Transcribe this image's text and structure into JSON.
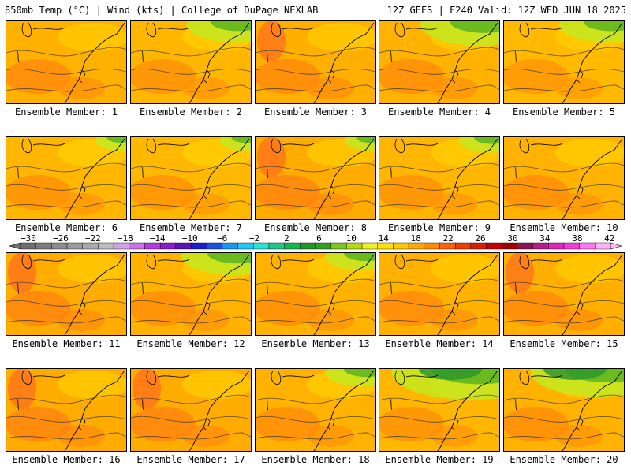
{
  "header": {
    "left": "850mb Temp (°C) | Wind (kts) | College of DuPage NEXLAB",
    "right": "12Z GEFS | F240 Valid: 12Z WED JUN 18 2025"
  },
  "member_label_prefix": "Ensemble Member: ",
  "members": [
    {
      "number": 1,
      "warmth": 0.5,
      "green": 0.0
    },
    {
      "number": 2,
      "warmth": 0.4,
      "green": 0.45
    },
    {
      "number": 3,
      "warmth": 0.55,
      "green": 0.0
    },
    {
      "number": 4,
      "warmth": 0.45,
      "green": 0.6
    },
    {
      "number": 5,
      "warmth": 0.3,
      "green": 0.45
    },
    {
      "number": 6,
      "warmth": 0.4,
      "green": 0.1
    },
    {
      "number": 7,
      "warmth": 0.35,
      "green": 0.1
    },
    {
      "number": 8,
      "warmth": 0.6,
      "green": 0.1
    },
    {
      "number": 9,
      "warmth": 0.4,
      "green": 0.2
    },
    {
      "number": 10,
      "warmth": 0.45,
      "green": 0.0
    },
    {
      "number": 11,
      "warmth": 0.6,
      "green": 0.0
    },
    {
      "number": 12,
      "warmth": 0.45,
      "green": 0.5
    },
    {
      "number": 13,
      "warmth": 0.45,
      "green": 0.3
    },
    {
      "number": 14,
      "warmth": 0.5,
      "green": 0.0
    },
    {
      "number": 15,
      "warmth": 0.55,
      "green": 0.0
    },
    {
      "number": 16,
      "warmth": 0.6,
      "green": 0.0
    },
    {
      "number": 17,
      "warmth": 0.6,
      "green": 0.0
    },
    {
      "number": 18,
      "warmth": 0.45,
      "green": 0.3
    },
    {
      "number": 19,
      "warmth": 0.4,
      "green": 0.9
    },
    {
      "number": 20,
      "warmth": 0.45,
      "green": 0.75
    }
  ],
  "colorbar": {
    "labels": [
      "−30",
      "−26",
      "−22",
      "−18",
      "−14",
      "−10",
      "−6",
      "−2",
      "2",
      "6",
      "10",
      "14",
      "18",
      "22",
      "26",
      "30",
      "34",
      "38",
      "42"
    ],
    "colors": [
      "#6e6e6e",
      "#7d7d7d",
      "#8c8c8c",
      "#9b9b9b",
      "#aaaaaa",
      "#bcbcbc",
      "#d2a4e6",
      "#c874e8",
      "#b43cdc",
      "#8c1ec8",
      "#5a14b4",
      "#1e1ec8",
      "#1e50e6",
      "#1e96f0",
      "#1ec8f0",
      "#28e6d2",
      "#1ec88c",
      "#14b450",
      "#1e9628",
      "#32a01e",
      "#78c81e",
      "#b4dc14",
      "#f0f01e",
      "#ffe100",
      "#ffc800",
      "#ffaa00",
      "#ff8c00",
      "#ff6400",
      "#f03c00",
      "#dc1e00",
      "#c80000",
      "#a00000",
      "#8c1450",
      "#b41e8c",
      "#dc28b4",
      "#f03cdc",
      "#ff78f0",
      "#ffb4fa"
    ],
    "base_color": "#ffc800"
  }
}
